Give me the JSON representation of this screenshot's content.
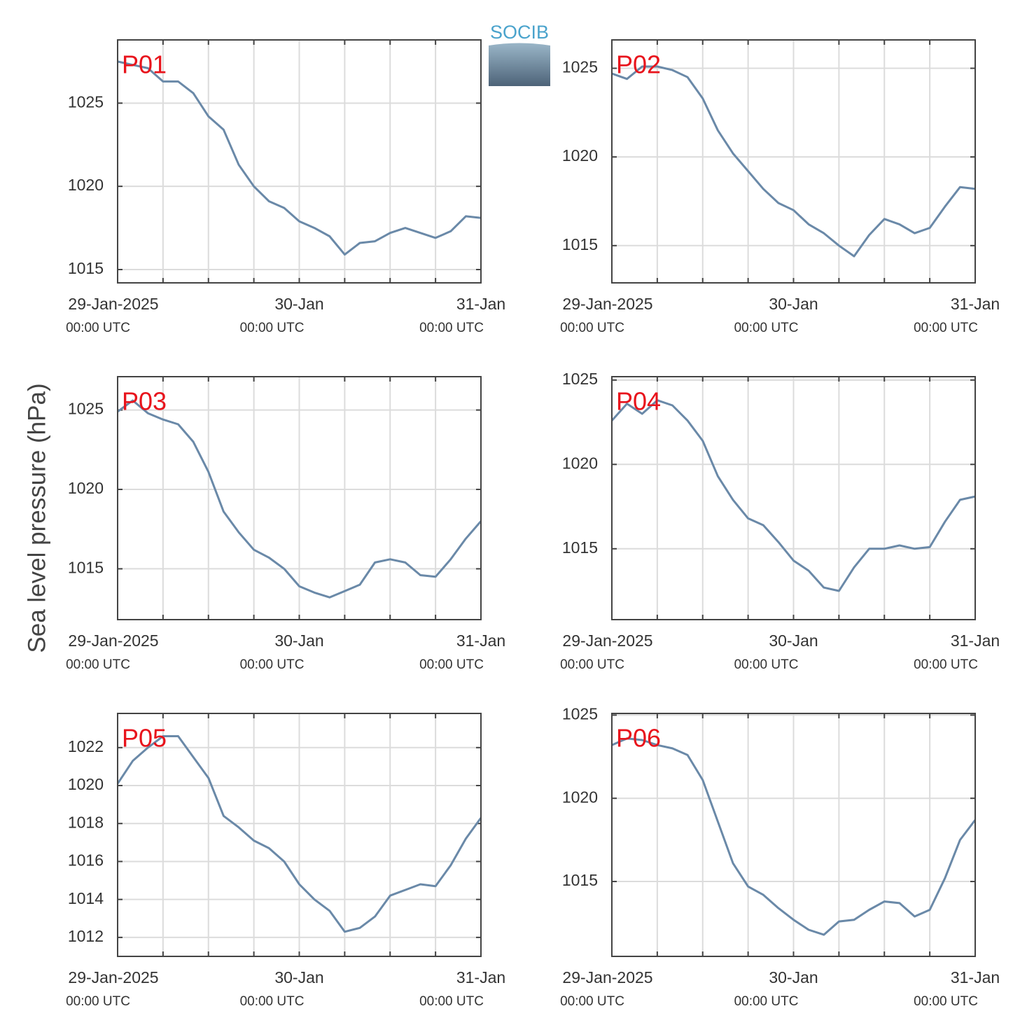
{
  "ylabel": "Sea level pressure (hPa)",
  "logo": "SOCIB",
  "chart_data": [
    {
      "type": "line",
      "label": "P01",
      "color": "#6a89a8",
      "x": [
        0,
        2,
        4,
        6,
        8,
        10,
        12,
        14,
        16,
        18,
        20,
        22,
        24,
        26,
        28,
        30,
        32,
        34,
        36,
        38,
        40,
        42,
        44,
        46,
        48
      ],
      "values": [
        1027.5,
        1027.3,
        1027.1,
        1026.3,
        1026.3,
        1025.6,
        1024.2,
        1023.4,
        1021.3,
        1020.0,
        1019.1,
        1018.7,
        1017.9,
        1017.5,
        1017.0,
        1015.9,
        1016.6,
        1016.7,
        1017.2,
        1017.5,
        1017.2,
        1016.9,
        1017.3,
        1018.2,
        1018.1
      ],
      "xlim": [
        0,
        48
      ],
      "xticks": [
        {
          "value": 0,
          "label": "29-Jan-2025",
          "sublabel": "00:00 UTC"
        },
        {
          "value": 24,
          "label": "30-Jan",
          "sublabel": "00:00 UTC"
        },
        {
          "value": 48,
          "label": "31-Jan",
          "sublabel": "00:00 UTC"
        }
      ],
      "xminor": [
        6,
        12,
        18,
        30,
        36,
        42
      ],
      "ylim": [
        1014.2,
        1028.8
      ],
      "yticks": [
        1015,
        1020,
        1025
      ],
      "grid": true
    },
    {
      "type": "line",
      "label": "P02",
      "color": "#6a89a8",
      "x": [
        0,
        2,
        4,
        6,
        8,
        10,
        12,
        14,
        16,
        18,
        20,
        22,
        24,
        26,
        28,
        30,
        32,
        34,
        36,
        38,
        40,
        42,
        44,
        46,
        48
      ],
      "values": [
        1024.7,
        1024.4,
        1025.1,
        1025.1,
        1024.9,
        1024.5,
        1023.3,
        1021.5,
        1020.2,
        1019.2,
        1018.2,
        1017.4,
        1017.0,
        1016.2,
        1015.7,
        1015.0,
        1014.4,
        1015.6,
        1016.5,
        1016.2,
        1015.7,
        1016.0,
        1017.2,
        1018.3,
        1018.2
      ],
      "xlim": [
        0,
        48
      ],
      "xticks": [
        {
          "value": 0,
          "label": "29-Jan-2025",
          "sublabel": "00:00 UTC"
        },
        {
          "value": 24,
          "label": "30-Jan",
          "sublabel": "00:00 UTC"
        },
        {
          "value": 48,
          "label": "31-Jan",
          "sublabel": "00:00 UTC"
        }
      ],
      "xminor": [
        6,
        12,
        18,
        30,
        36,
        42
      ],
      "ylim": [
        1012.9,
        1026.6
      ],
      "yticks": [
        1015,
        1020,
        1025
      ],
      "grid": true
    },
    {
      "type": "line",
      "label": "P03",
      "color": "#6a89a8",
      "x": [
        0,
        2,
        4,
        6,
        8,
        10,
        12,
        14,
        16,
        18,
        20,
        22,
        24,
        26,
        28,
        30,
        32,
        34,
        36,
        38,
        40,
        42,
        44,
        46,
        48
      ],
      "values": [
        1024.9,
        1025.6,
        1024.8,
        1024.4,
        1024.1,
        1023.0,
        1021.1,
        1018.6,
        1017.3,
        1016.2,
        1015.7,
        1015.0,
        1013.9,
        1013.5,
        1013.2,
        1013.6,
        1014.0,
        1015.4,
        1015.6,
        1015.4,
        1014.6,
        1014.5,
        1015.6,
        1016.9,
        1018.0
      ],
      "xlim": [
        0,
        48
      ],
      "xticks": [
        {
          "value": 0,
          "label": "29-Jan-2025",
          "sublabel": "00:00 UTC"
        },
        {
          "value": 24,
          "label": "30-Jan",
          "sublabel": "00:00 UTC"
        },
        {
          "value": 48,
          "label": "31-Jan",
          "sublabel": "00:00 UTC"
        }
      ],
      "xminor": [
        6,
        12,
        18,
        30,
        36,
        42
      ],
      "ylim": [
        1011.8,
        1027.1
      ],
      "yticks": [
        1015,
        1020,
        1025
      ],
      "grid": true
    },
    {
      "type": "line",
      "label": "P04",
      "color": "#6a89a8",
      "x": [
        0,
        2,
        4,
        6,
        8,
        10,
        12,
        14,
        16,
        18,
        20,
        22,
        24,
        26,
        28,
        30,
        32,
        34,
        36,
        38,
        40,
        42,
        44,
        46,
        48
      ],
      "values": [
        1022.6,
        1023.6,
        1023.0,
        1023.8,
        1023.5,
        1022.6,
        1021.4,
        1019.3,
        1017.9,
        1016.8,
        1016.4,
        1015.4,
        1014.3,
        1013.7,
        1012.7,
        1012.5,
        1013.9,
        1015.0,
        1015.0,
        1015.2,
        1015.0,
        1015.1,
        1016.6,
        1017.9,
        1018.1
      ],
      "xlim": [
        0,
        48
      ],
      "xticks": [
        {
          "value": 0,
          "label": "29-Jan-2025",
          "sublabel": "00:00 UTC"
        },
        {
          "value": 24,
          "label": "30-Jan",
          "sublabel": "00:00 UTC"
        },
        {
          "value": 48,
          "label": "31-Jan",
          "sublabel": "00:00 UTC"
        }
      ],
      "xminor": [
        6,
        12,
        18,
        30,
        36,
        42
      ],
      "ylim": [
        1010.8,
        1025.2
      ],
      "yticks": [
        1015,
        1020,
        1025
      ],
      "grid": true
    },
    {
      "type": "line",
      "label": "P05",
      "color": "#6a89a8",
      "x": [
        0,
        2,
        4,
        6,
        8,
        10,
        12,
        14,
        16,
        18,
        20,
        22,
        24,
        26,
        28,
        30,
        32,
        34,
        36,
        38,
        40,
        42,
        44,
        46,
        48
      ],
      "values": [
        1020.1,
        1021.3,
        1022.0,
        1022.6,
        1022.6,
        1021.5,
        1020.4,
        1018.4,
        1017.8,
        1017.1,
        1016.7,
        1016.0,
        1014.8,
        1014.0,
        1013.4,
        1012.3,
        1012.5,
        1013.1,
        1014.2,
        1014.5,
        1014.8,
        1014.7,
        1015.8,
        1017.2,
        1018.3
      ],
      "xlim": [
        0,
        48
      ],
      "xticks": [
        {
          "value": 0,
          "label": "29-Jan-2025",
          "sublabel": "00:00 UTC"
        },
        {
          "value": 24,
          "label": "30-Jan",
          "sublabel": "00:00 UTC"
        },
        {
          "value": 48,
          "label": "31-Jan",
          "sublabel": "00:00 UTC"
        }
      ],
      "xminor": [
        6,
        12,
        18,
        30,
        36,
        42
      ],
      "ylim": [
        1011.0,
        1023.8
      ],
      "yticks": [
        1012,
        1014,
        1016,
        1018,
        1020,
        1022
      ],
      "grid": true
    },
    {
      "type": "line",
      "label": "P06",
      "color": "#6a89a8",
      "x": [
        0,
        2,
        4,
        6,
        8,
        10,
        12,
        14,
        16,
        18,
        20,
        22,
        24,
        26,
        28,
        30,
        32,
        34,
        36,
        38,
        40,
        42,
        44,
        46,
        48
      ],
      "values": [
        1023.2,
        1023.6,
        1023.5,
        1023.2,
        1023.0,
        1022.6,
        1021.1,
        1018.6,
        1016.1,
        1014.7,
        1014.2,
        1013.4,
        1012.7,
        1012.1,
        1011.8,
        1012.6,
        1012.7,
        1013.3,
        1013.8,
        1013.7,
        1012.9,
        1013.3,
        1015.2,
        1017.5,
        1018.7
      ],
      "xlim": [
        0,
        48
      ],
      "xticks": [
        {
          "value": 0,
          "label": "29-Jan-2025",
          "sublabel": "00:00 UTC"
        },
        {
          "value": 24,
          "label": "30-Jan",
          "sublabel": "00:00 UTC"
        },
        {
          "value": 48,
          "label": "31-Jan",
          "sublabel": "00:00 UTC"
        }
      ],
      "xminor": [
        6,
        12,
        18,
        30,
        36,
        42
      ],
      "ylim": [
        1010.5,
        1025.1
      ],
      "yticks": [
        1015,
        1020,
        1025
      ],
      "grid": true
    }
  ]
}
